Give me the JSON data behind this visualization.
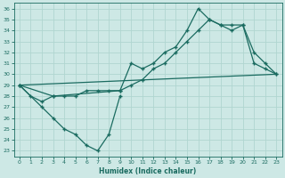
{
  "xlabel": "Humidex (Indice chaleur)",
  "bg_color": "#cde8e5",
  "grid_color": "#b0d5d0",
  "line_color": "#1a6b60",
  "xlim": [
    -0.5,
    23.5
  ],
  "ylim": [
    22.5,
    36.5
  ],
  "yticks": [
    23,
    24,
    25,
    26,
    27,
    28,
    29,
    30,
    31,
    32,
    33,
    34,
    35,
    36
  ],
  "xticks": [
    0,
    1,
    2,
    3,
    4,
    5,
    6,
    7,
    8,
    9,
    10,
    11,
    12,
    13,
    14,
    15,
    16,
    17,
    18,
    19,
    20,
    21,
    22,
    23
  ],
  "series1_x": [
    0,
    1,
    2,
    3,
    4,
    5,
    6,
    7,
    8,
    9,
    10,
    11,
    12,
    13,
    14,
    15,
    16,
    17,
    18,
    19,
    20,
    21,
    22,
    23
  ],
  "series1_y": [
    29,
    28,
    27.5,
    28,
    28,
    28,
    28.5,
    28.5,
    28.5,
    28.5,
    29,
    29.5,
    30.5,
    31,
    32,
    33,
    34,
    35,
    34.5,
    34.5,
    34.5,
    32,
    31,
    30
  ],
  "series2_x": [
    0,
    3,
    9,
    10,
    11,
    12,
    13,
    14,
    15,
    16,
    17,
    18,
    19,
    20,
    21,
    22,
    23
  ],
  "series2_y": [
    29,
    28,
    28.5,
    31,
    30.5,
    31,
    32,
    32.5,
    34,
    36,
    35,
    34.5,
    34,
    34.5,
    31,
    30.5,
    30
  ],
  "series3_x": [
    0,
    2,
    3,
    4,
    5,
    6,
    7,
    8,
    9
  ],
  "series3_y": [
    29,
    27,
    26,
    25,
    24.5,
    23.5,
    23,
    24.5,
    28
  ],
  "markersize": 2.5,
  "linewidth": 0.9,
  "tick_fontsize": 4.5,
  "xlabel_fontsize": 5.5
}
